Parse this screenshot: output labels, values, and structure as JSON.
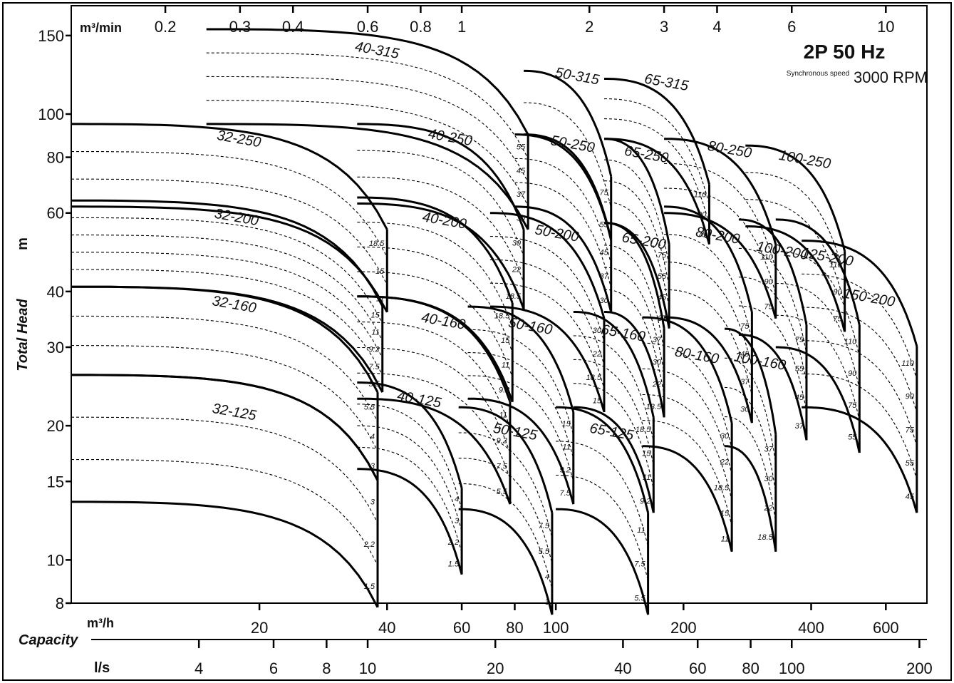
{
  "chart_data": {
    "type": "line",
    "title": "2P 50 Hz",
    "subtitle_small": "Synchronous speed",
    "subtitle": "3000 RPM",
    "ylabel": "Total Head",
    "yunit": "m",
    "xlabel": "Capacity",
    "x_scale": "log",
    "y_scale": "log",
    "xlim_m3h": [
      7.2,
      750
    ],
    "ylim_m": [
      8,
      175
    ],
    "x_units": {
      "m3h": "m³/h",
      "m3min": "m³/min",
      "ls": "l/s"
    },
    "yticks": [
      8,
      10,
      15,
      20,
      30,
      40,
      60,
      80,
      100,
      150
    ],
    "xticks_m3h": [
      {
        "v": 20,
        "label": "20"
      },
      {
        "v": 40,
        "label": "40"
      },
      {
        "v": 60,
        "label": "60"
      },
      {
        "v": 80,
        "label": "80"
      },
      {
        "v": 100,
        "label": "100"
      },
      {
        "v": 200,
        "label": "200"
      },
      {
        "v": 400,
        "label": "400"
      },
      {
        "v": 600,
        "label": "600"
      }
    ],
    "xticks_m3min": [
      {
        "v": 0.2,
        "label": "0.2"
      },
      {
        "v": 0.3,
        "label": "0.3"
      },
      {
        "v": 0.4,
        "label": "0.4"
      },
      {
        "v": 0.6,
        "label": "0.6"
      },
      {
        "v": 0.8,
        "label": "0.8"
      },
      {
        "v": 1,
        "label": "1"
      },
      {
        "v": 2,
        "label": "2"
      },
      {
        "v": 3,
        "label": "3"
      },
      {
        "v": 4,
        "label": "4"
      },
      {
        "v": 6,
        "label": "6"
      },
      {
        "v": 10,
        "label": "10"
      }
    ],
    "xticks_ls": [
      {
        "v": 4,
        "label": "4"
      },
      {
        "v": 6,
        "label": "6"
      },
      {
        "v": 8,
        "label": "8"
      },
      {
        "v": 10,
        "label": "10"
      },
      {
        "v": 20,
        "label": "20"
      },
      {
        "v": 40,
        "label": "40"
      },
      {
        "v": 60,
        "label": "60"
      },
      {
        "v": 80,
        "label": "80"
      },
      {
        "v": 100,
        "label": "100"
      },
      {
        "v": 200,
        "label": "200"
      }
    ],
    "pump_ranges": [
      {
        "model": "32-125",
        "q_min": 7.2,
        "q_max": 38,
        "h_top": 26,
        "h_bot": 13.5,
        "ratings_kw": [
          "3",
          "2.2",
          "1.5"
        ]
      },
      {
        "model": "32-160",
        "q_min": 7.2,
        "q_max": 38,
        "h_top": 41,
        "h_bot": 26,
        "ratings_kw": [
          "5.5",
          "4",
          "3"
        ]
      },
      {
        "model": "32-200",
        "q_min": 7.2,
        "q_max": 39,
        "h_top": 64,
        "h_bot": 41,
        "ratings_kw": [
          "15",
          "11",
          "9.2",
          "7.5",
          "5.5"
        ]
      },
      {
        "model": "32-250",
        "q_min": 7.2,
        "q_max": 40,
        "h_top": 95,
        "h_bot": 62,
        "ratings_kw": [
          "18.5",
          "15",
          "11"
        ]
      },
      {
        "model": "40-125",
        "q_min": 34,
        "q_max": 60,
        "h_top": 25,
        "h_bot": 16,
        "ratings_kw": [
          "4",
          "3",
          "2.2",
          "1.5"
        ]
      },
      {
        "model": "40-160",
        "q_min": 34,
        "q_max": 78,
        "h_top": 39,
        "h_bot": 23,
        "ratings_kw": [
          "11",
          "9.2",
          "7.5",
          "5.5"
        ]
      },
      {
        "model": "40-200",
        "q_min": 34,
        "q_max": 79,
        "h_top": 65,
        "h_bot": 39,
        "ratings_kw": [
          "18.5",
          "15",
          "11",
          "9.2"
        ]
      },
      {
        "model": "40-250",
        "q_min": 34,
        "q_max": 84,
        "h_top": 95,
        "h_bot": 63,
        "ratings_kw": [
          "30",
          "22",
          "18.5"
        ]
      },
      {
        "model": "40-315",
        "q_min": 15,
        "q_max": 86,
        "h_top": 155,
        "h_bot": 95,
        "ratings_kw": [
          "55",
          "45",
          "37",
          "30"
        ]
      },
      {
        "model": "50-125",
        "q_min": 59,
        "q_max": 98,
        "h_top": 22,
        "h_bot": 13,
        "ratings_kw": [
          "7.5",
          "5.5",
          "4",
          "3"
        ]
      },
      {
        "model": "50-160",
        "q_min": 62,
        "q_max": 110,
        "h_top": 37,
        "h_bot": 23,
        "ratings_kw": [
          "15",
          "11",
          "9.2",
          "7.5"
        ]
      },
      {
        "model": "50-200",
        "q_min": 70,
        "q_max": 130,
        "h_top": 60,
        "h_bot": 37,
        "ratings_kw": [
          "30",
          "22",
          "18.5",
          "15"
        ]
      },
      {
        "model": "50-250",
        "q_min": 80,
        "q_max": 135,
        "h_top": 90,
        "h_bot": 62,
        "ratings_kw": [
          "45",
          "37",
          "30"
        ]
      },
      {
        "model": "50-315",
        "q_min": 84,
        "q_max": 135,
        "h_top": 125,
        "h_bot": 90,
        "ratings_kw": [
          "75",
          "55"
        ]
      },
      {
        "model": "65-125",
        "q_min": 100,
        "q_max": 165,
        "h_top": 22,
        "h_bot": 13,
        "ratings_kw": [
          "11",
          "7.5",
          "5.5"
        ]
      },
      {
        "model": "65-160",
        "q_min": 110,
        "q_max": 170,
        "h_top": 36,
        "h_bot": 22,
        "ratings_kw": [
          "18.5",
          "15",
          "11",
          "9.2"
        ]
      },
      {
        "model": "65-200",
        "q_min": 130,
        "q_max": 180,
        "h_top": 57,
        "h_bot": 36,
        "ratings_kw": [
          "37",
          "30",
          "22",
          "18.5"
        ]
      },
      {
        "model": "65-250",
        "q_min": 130,
        "q_max": 185,
        "h_top": 88,
        "h_bot": 57,
        "ratings_kw": [
          "75",
          "55",
          "45",
          "37"
        ]
      },
      {
        "model": "65-315",
        "q_min": 130,
        "q_max": 230,
        "h_top": 120,
        "h_bot": 88,
        "ratings_kw": [
          "110",
          "90",
          "75"
        ]
      },
      {
        "model": "80-160",
        "q_min": 160,
        "q_max": 260,
        "h_top": 35,
        "h_bot": 18,
        "ratings_kw": [
          "30",
          "22",
          "18.5",
          "15",
          "11"
        ]
      },
      {
        "model": "80-200",
        "q_min": 180,
        "q_max": 290,
        "h_top": 62,
        "h_bot": 35,
        "ratings_kw": [
          "75",
          "45",
          "37",
          "30"
        ]
      },
      {
        "model": "80-250",
        "q_min": 180,
        "q_max": 330,
        "h_top": 88,
        "h_bot": 60,
        "ratings_kw": [
          "110",
          "90",
          "75"
        ]
      },
      {
        "model": "100-160",
        "q_min": 250,
        "q_max": 330,
        "h_top": 33,
        "h_bot": 18,
        "ratings_kw": [
          "37",
          "30",
          "22",
          "18.5"
        ]
      },
      {
        "model": "100-200",
        "q_min": 270,
        "q_max": 390,
        "h_top": 58,
        "h_bot": 32,
        "ratings_kw": [
          "75",
          "55",
          "45",
          "37"
        ]
      },
      {
        "model": "100-250",
        "q_min": 280,
        "q_max": 480,
        "h_top": 85,
        "h_bot": 56,
        "ratings_kw": [
          "110",
          "90",
          "75"
        ]
      },
      {
        "model": "125-200",
        "q_min": 330,
        "q_max": 520,
        "h_top": 58,
        "h_bot": 30,
        "ratings_kw": [
          "110",
          "90",
          "75",
          "55"
        ]
      },
      {
        "model": "150-200",
        "q_min": 380,
        "q_max": 710,
        "h_top": 52,
        "h_bot": 22,
        "ratings_kw": [
          "110",
          "90",
          "75",
          "55",
          "45"
        ]
      }
    ]
  }
}
